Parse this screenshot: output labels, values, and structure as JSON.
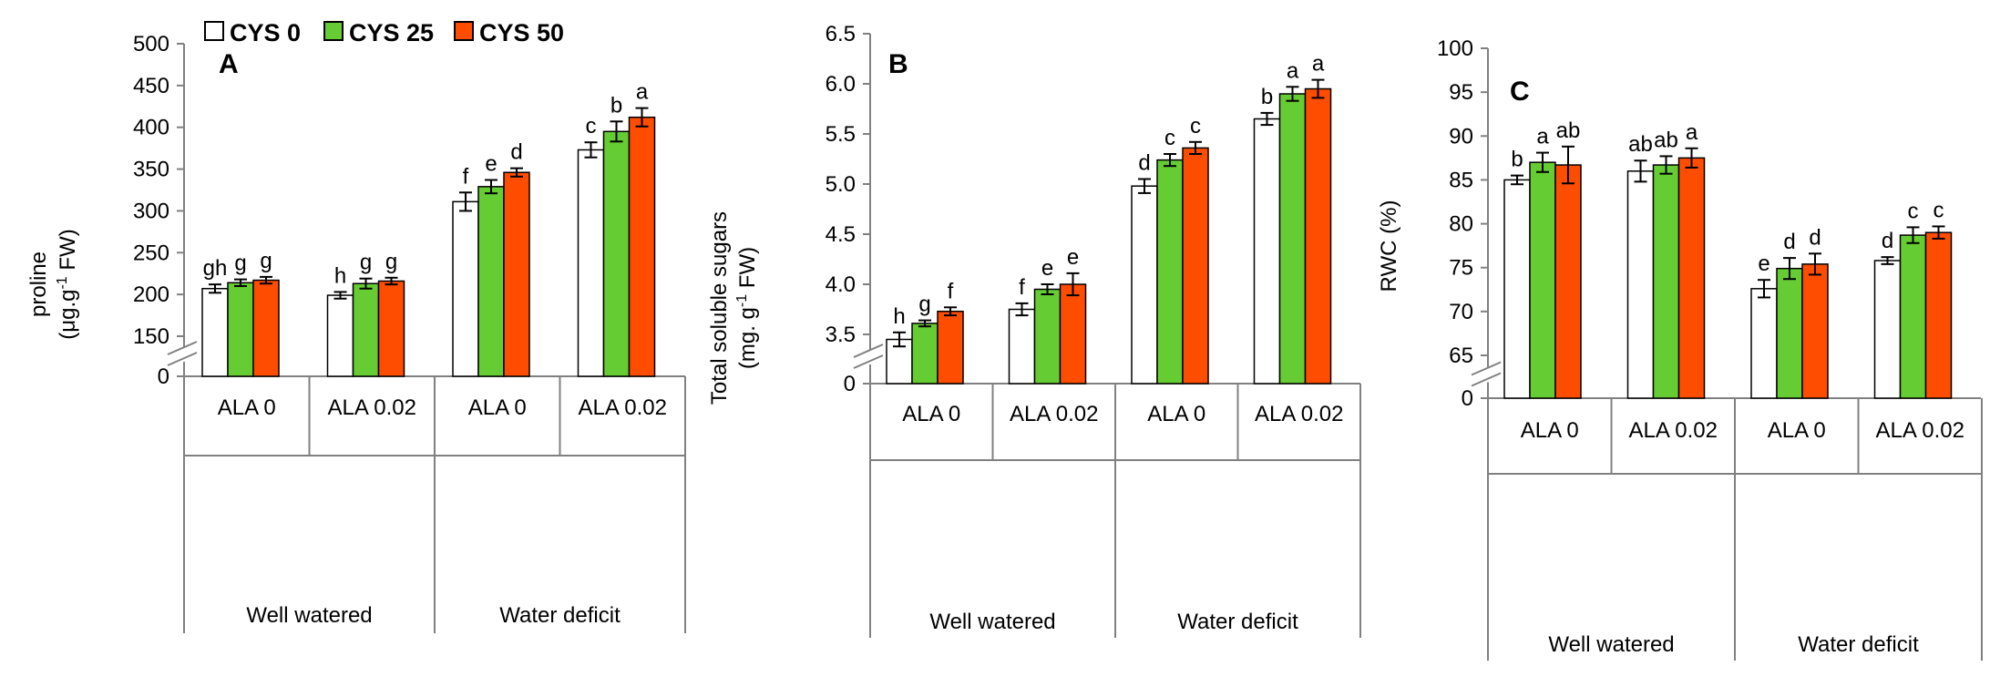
{
  "legend": {
    "items": [
      {
        "label": "CYS 0",
        "color": "#ffffff"
      },
      {
        "label": "CYS 25",
        "color": "#66cc33"
      },
      {
        "label": "CYS 50",
        "color": "#ff4d00"
      }
    ]
  },
  "chart_data": [
    {
      "type": "bar",
      "panel": "A",
      "ylabel": "proline",
      "ylabel_unit": {
        "pre": "(μg.g",
        "sup": "-1",
        "post": " FW)"
      },
      "ylim": [
        150,
        500
      ],
      "yticks": [
        150,
        200,
        250,
        300,
        350,
        400,
        450,
        500
      ],
      "axis_break": true,
      "break_label": "0",
      "categories": [
        "ALA 0",
        "ALA 0.02",
        "ALA 0",
        "ALA 0.02"
      ],
      "groups": [
        "Well watered",
        "Water deficit"
      ],
      "series": [
        {
          "name": "CYS 0",
          "values": [
            207,
            199,
            311,
            373
          ],
          "errors": [
            5,
            4,
            11,
            9
          ],
          "letters": [
            "gh",
            "h",
            "f",
            "c"
          ]
        },
        {
          "name": "CYS 25",
          "values": [
            214,
            213,
            329,
            395
          ],
          "errors": [
            4,
            6,
            8,
            12
          ],
          "letters": [
            "g",
            "g",
            "e",
            "b"
          ]
        },
        {
          "name": "CYS 50",
          "values": [
            217,
            216,
            346,
            412
          ],
          "errors": [
            4,
            4,
            5,
            11
          ],
          "letters": [
            "g",
            "g",
            "d",
            "a"
          ]
        }
      ]
    },
    {
      "type": "bar",
      "panel": "B",
      "ylabel": "Total soluble  sugars",
      "ylabel_unit": {
        "pre": "(mg. g",
        "sup": "-1",
        "post": " FW)"
      },
      "ylim": [
        3.5,
        6.5
      ],
      "yticks": [
        3.5,
        4.0,
        4.5,
        5.0,
        5.5,
        6.0,
        6.5
      ],
      "ytick_labels": [
        "3.5",
        "4.0",
        "4.5",
        "5.0",
        "5.5",
        "6.0",
        "6.5"
      ],
      "axis_break": true,
      "break_label": "0",
      "categories": [
        "ALA 0",
        "ALA 0.02",
        "ALA 0",
        "ALA 0.02"
      ],
      "groups": [
        "Well watered",
        "Water deficit"
      ],
      "series": [
        {
          "name": "CYS 0",
          "values": [
            3.45,
            3.75,
            4.98,
            5.65
          ],
          "errors": [
            0.07,
            0.06,
            0.07,
            0.06
          ],
          "letters": [
            "h",
            "f",
            "d",
            "b"
          ]
        },
        {
          "name": "CYS 25",
          "values": [
            3.61,
            3.95,
            5.24,
            5.9
          ],
          "errors": [
            0.03,
            0.05,
            0.06,
            0.07
          ],
          "letters": [
            "g",
            "e",
            "c",
            "a"
          ]
        },
        {
          "name": "CYS 50",
          "values": [
            3.73,
            4.0,
            5.36,
            5.95
          ],
          "errors": [
            0.04,
            0.11,
            0.06,
            0.09
          ],
          "letters": [
            "f",
            "e",
            "c",
            "a"
          ]
        }
      ]
    },
    {
      "type": "bar",
      "panel": "C",
      "ylabel": "RWC (%)",
      "ylim": [
        65,
        100
      ],
      "yticks": [
        65,
        70,
        75,
        80,
        85,
        90,
        95,
        100
      ],
      "axis_break": true,
      "break_label": "0",
      "categories": [
        "ALA 0",
        "ALA 0.02",
        "ALA 0",
        "ALA 0.02"
      ],
      "groups": [
        "Well watered",
        "Water deficit"
      ],
      "series": [
        {
          "name": "CYS 0",
          "values": [
            85.0,
            86.0,
            72.6,
            75.8
          ],
          "errors": [
            0.5,
            1.2,
            1.0,
            0.4
          ],
          "letters": [
            "b",
            "ab",
            "e",
            "d"
          ]
        },
        {
          "name": "CYS 25",
          "values": [
            87.0,
            86.7,
            74.9,
            78.7
          ],
          "errors": [
            1.1,
            1.0,
            1.2,
            0.9
          ],
          "letters": [
            "a",
            "ab",
            "d",
            "c"
          ]
        },
        {
          "name": "CYS 50",
          "values": [
            86.7,
            87.5,
            75.4,
            79.0
          ],
          "errors": [
            2.1,
            1.1,
            1.2,
            0.7
          ],
          "letters": [
            "ab",
            "a",
            "d",
            "c"
          ]
        }
      ]
    }
  ]
}
